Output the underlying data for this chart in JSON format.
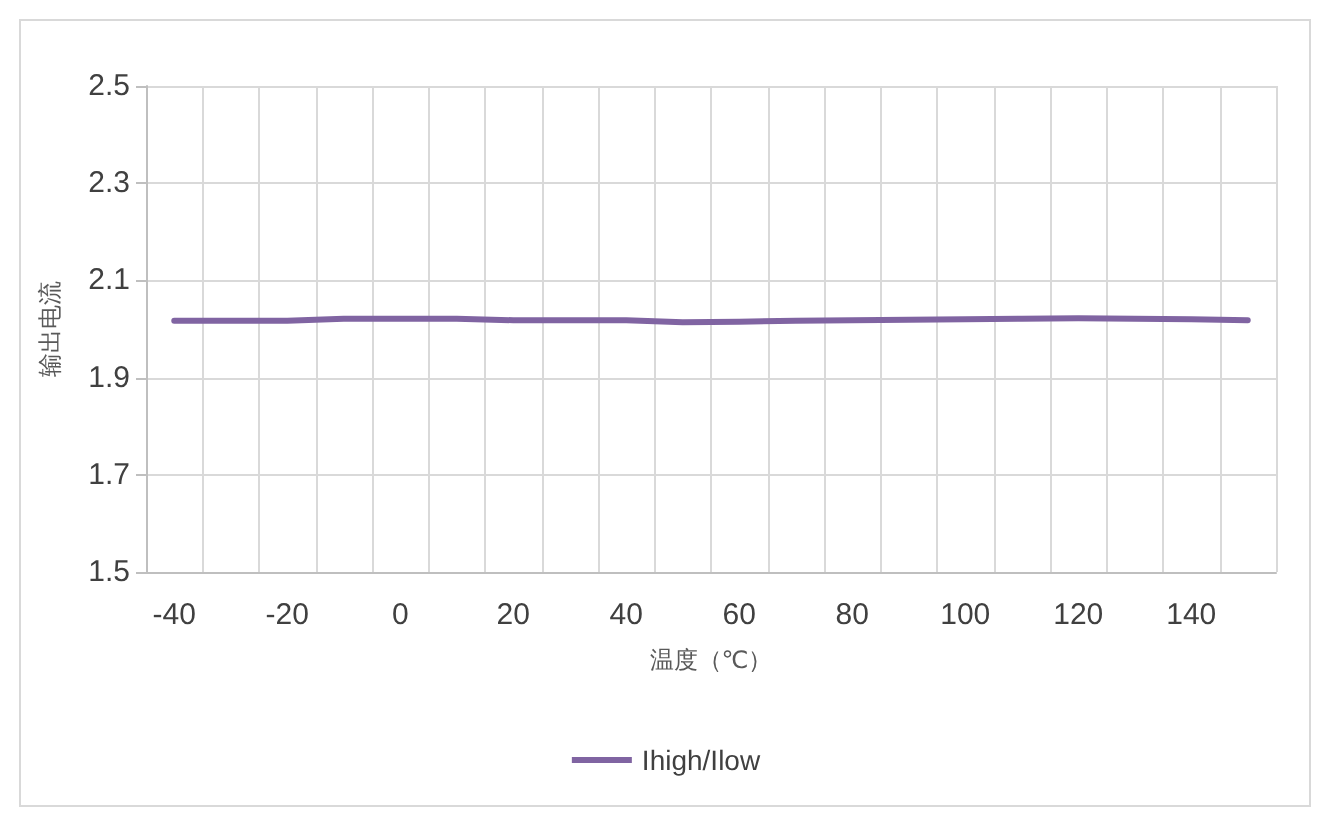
{
  "chart_data": {
    "type": "line",
    "xlabel": "温度（℃）",
    "ylabel": "输出电流",
    "categories": [
      "-40",
      null,
      "-20",
      null,
      "0",
      null,
      "20",
      null,
      "40",
      null,
      "60",
      null,
      "80",
      null,
      "100",
      null,
      "120",
      null,
      "140",
      null
    ],
    "series": [
      {
        "name": "Ihigh/Ilow",
        "color": "#8064a2",
        "values": [
          2.017,
          2.017,
          2.017,
          2.021,
          2.021,
          2.021,
          2.018,
          2.018,
          2.018,
          2.014,
          2.015,
          2.017,
          2.018,
          2.019,
          2.02,
          2.021,
          2.022,
          2.021,
          2.02,
          2.018
        ]
      }
    ],
    "ylim": [
      1.5,
      2.5
    ],
    "yticks": [
      1.5,
      1.7,
      1.9,
      2.1,
      2.3,
      2.5
    ],
    "grid": true,
    "legend": "bottom",
    "marker": "none",
    "line_style": "solid"
  }
}
